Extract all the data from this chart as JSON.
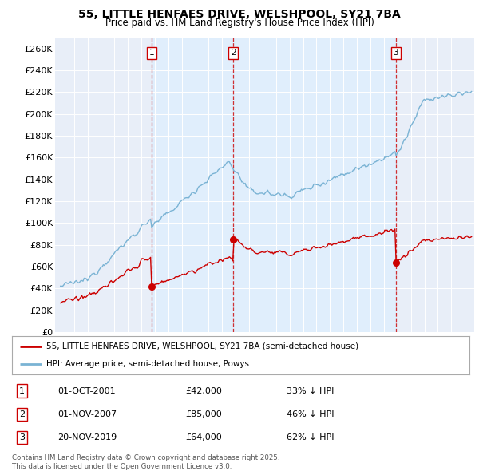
{
  "title": "55, LITTLE HENFAES DRIVE, WELSHPOOL, SY21 7BA",
  "subtitle": "Price paid vs. HM Land Registry's House Price Index (HPI)",
  "hpi_color": "#7ab3d4",
  "price_color": "#cc0000",
  "shade_color": "#ddeeff",
  "sale_dates_decimal": [
    2001.75,
    2007.833,
    2019.875
  ],
  "sale_prices": [
    42000,
    85000,
    64000
  ],
  "sale_labels": [
    "1",
    "2",
    "3"
  ],
  "sale_info": [
    [
      "1",
      "01-OCT-2001",
      "£42,000",
      "33% ↓ HPI"
    ],
    [
      "2",
      "01-NOV-2007",
      "£85,000",
      "46% ↓ HPI"
    ],
    [
      "3",
      "20-NOV-2019",
      "£64,000",
      "62% ↓ HPI"
    ]
  ],
  "legend_red": "55, LITTLE HENFAES DRIVE, WELSHPOOL, SY21 7BA (semi-detached house)",
  "legend_blue": "HPI: Average price, semi-detached house, Powys",
  "footer": "Contains HM Land Registry data © Crown copyright and database right 2025.\nThis data is licensed under the Open Government Licence v3.0.",
  "ylim": [
    0,
    270000
  ],
  "ytick_vals": [
    0,
    20000,
    40000,
    60000,
    80000,
    100000,
    120000,
    140000,
    160000,
    180000,
    200000,
    220000,
    240000,
    260000
  ],
  "ytick_labels": [
    "£0",
    "£20K",
    "£40K",
    "£60K",
    "£80K",
    "£100K",
    "£120K",
    "£140K",
    "£160K",
    "£180K",
    "£200K",
    "£220K",
    "£240K",
    "£260K"
  ],
  "xlim_start": 1994.6,
  "xlim_end": 2025.7,
  "background_color": "#e8eef8"
}
